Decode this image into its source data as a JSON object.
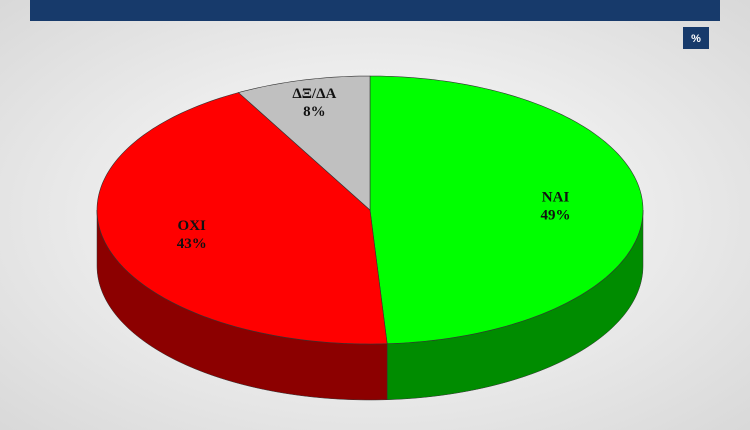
{
  "chart_data": {
    "type": "pie",
    "subtitle": "%",
    "categories": [
      "ΝΑΙ",
      "ΟΧΙ",
      "ΔΞ/ΔΑ"
    ],
    "values": [
      49,
      43,
      8
    ],
    "value_labels": [
      "49%",
      "43%",
      "8%"
    ],
    "colors": [
      "#00ff00",
      "#ff0000",
      "#c0c0c0"
    ]
  }
}
